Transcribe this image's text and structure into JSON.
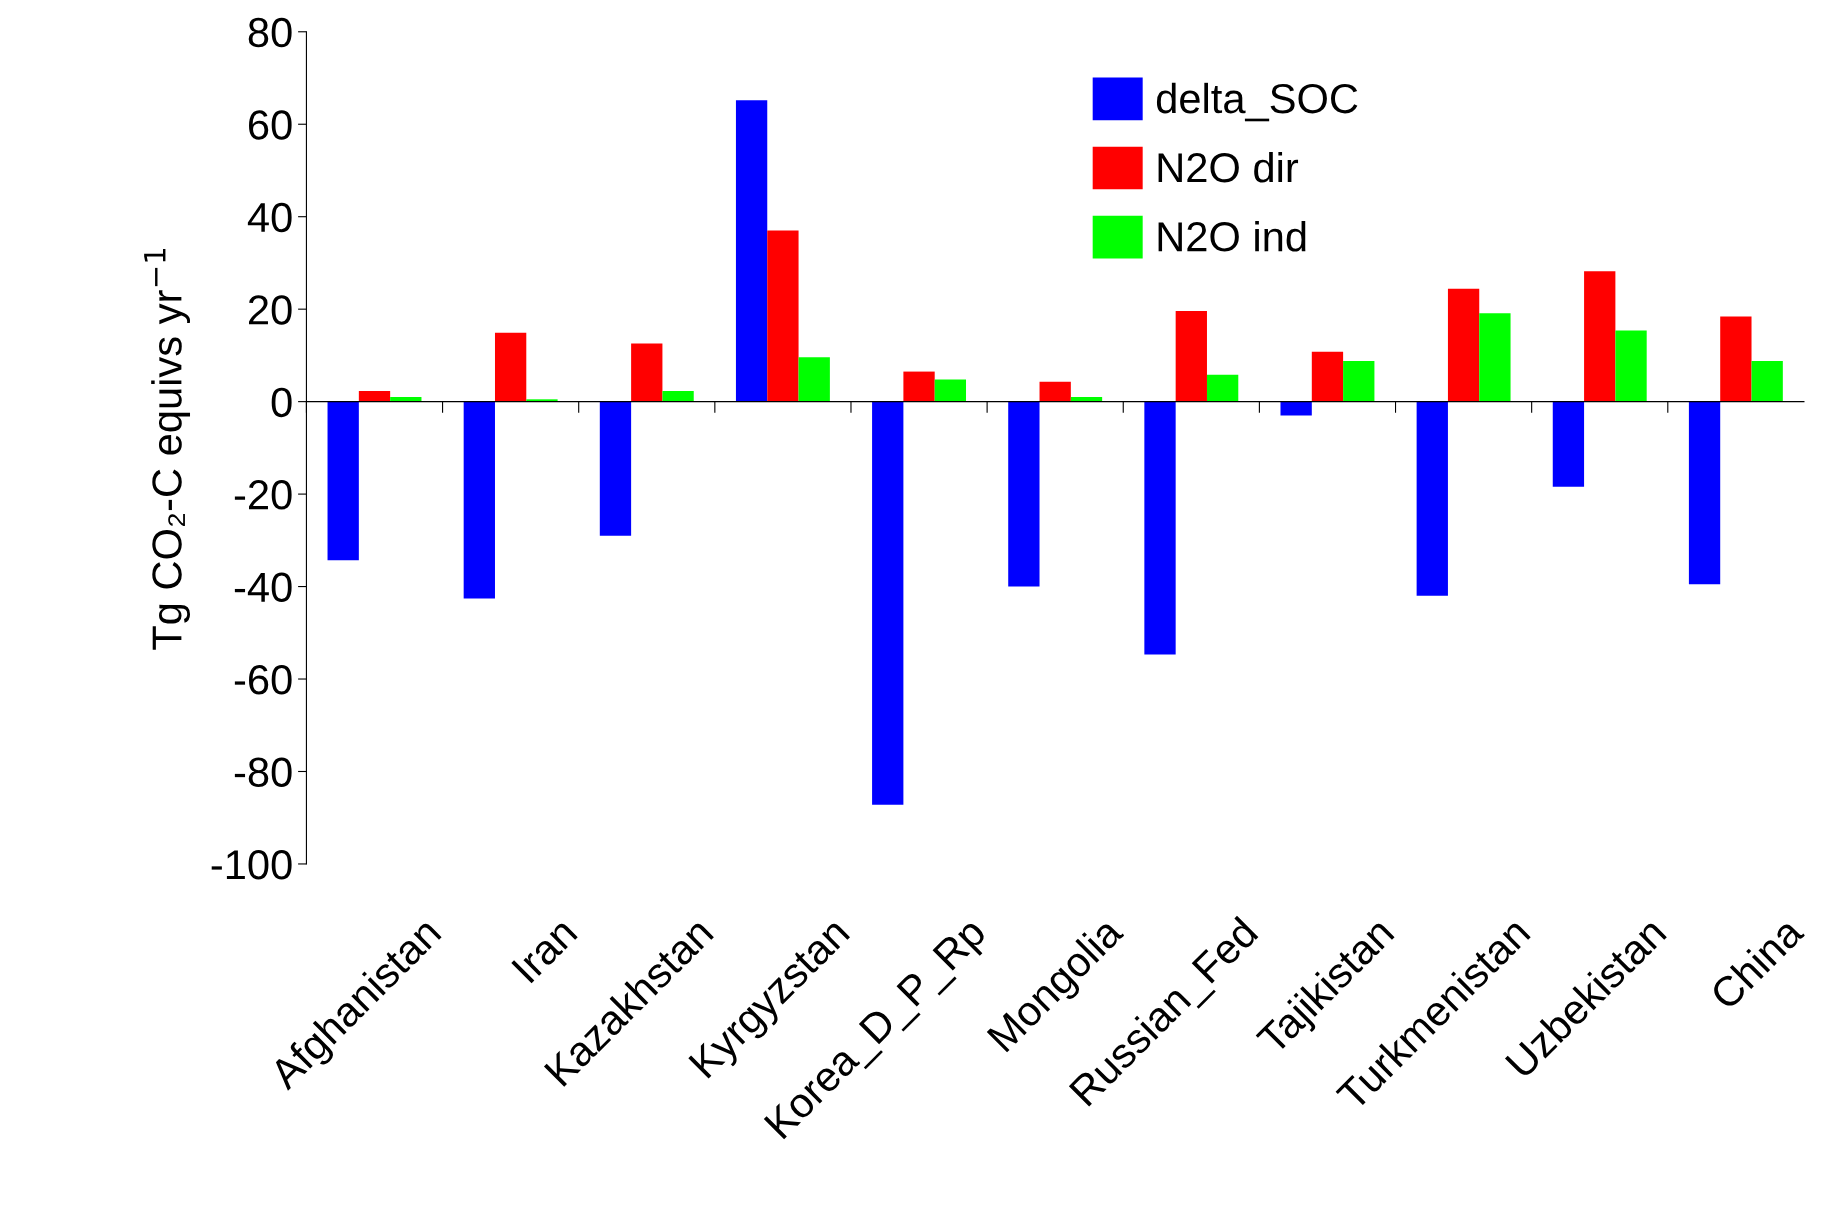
{
  "chart_data": {
    "type": "bar",
    "ylabel": "Tg CO₂-C equivs yr$^{−1}$",
    "categories": [
      "Afghanistan",
      "Iran",
      "Kazakhstan",
      "Kyrgyzstan",
      "Korea_D_P_Rp",
      "Mongolia",
      "Russian_Fed",
      "Tajikistan",
      "Turkmenistan",
      "Uzbekistan",
      "China"
    ],
    "series": [
      {
        "name": "delta_SOC",
        "color": "#0000ff",
        "values": [
          -34.3,
          -42.6,
          -29,
          65.2,
          -87.2,
          -40,
          -54.7,
          -3,
          -42,
          -18.4,
          -39.5
        ]
      },
      {
        "name": "N2O dir",
        "color": "#ff0000",
        "values": [
          2.3,
          14.9,
          12.6,
          37,
          6.5,
          4.3,
          19.6,
          10.8,
          24.4,
          28.2,
          18.4
        ]
      },
      {
        "name": "N2O ind",
        "color": "#00ff00",
        "values": [
          1,
          0.5,
          2.3,
          9.6,
          4.8,
          1,
          5.8,
          8.8,
          19.1,
          15.4,
          8.8
        ]
      }
    ],
    "ylim": [
      -100,
      80
    ],
    "yticks": [
      -100,
      -80,
      -60,
      -40,
      -20,
      0,
      20,
      40,
      60,
      80
    ],
    "legend": "top right"
  }
}
